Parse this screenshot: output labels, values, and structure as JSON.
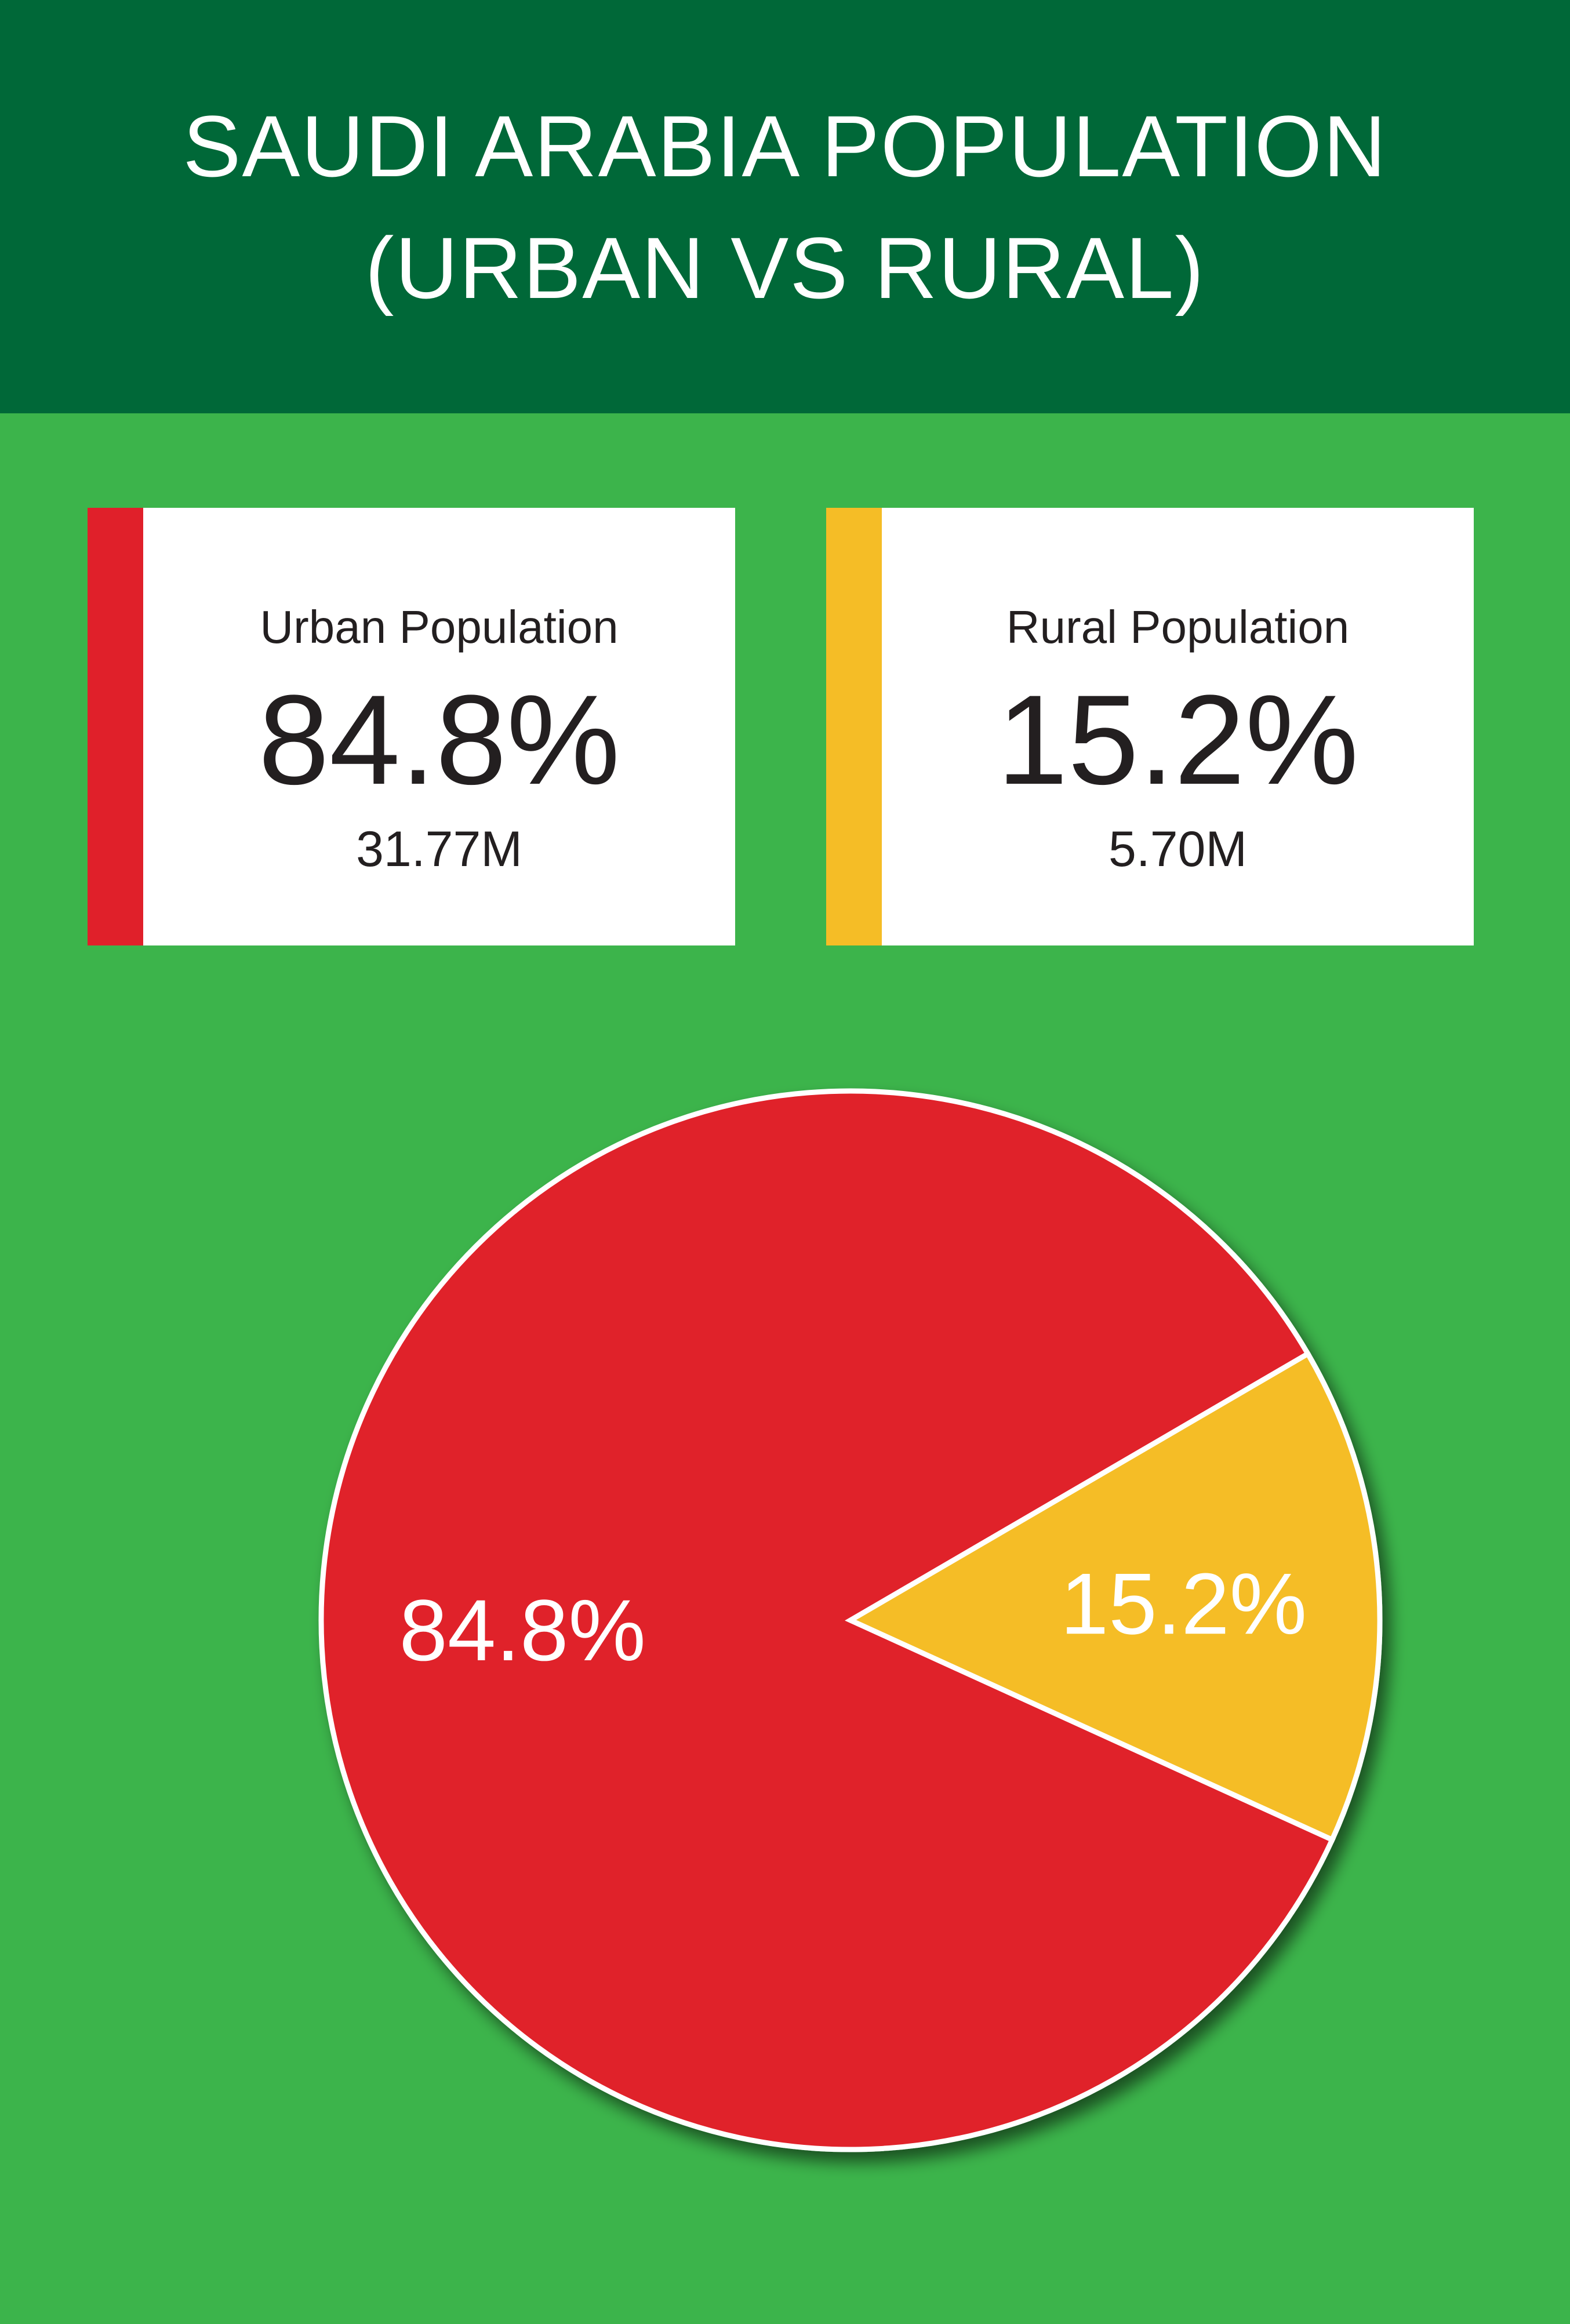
{
  "header": {
    "title_line1": "SAUDI ARABIA POPULATION",
    "title_line2": "(URBAN VS RURAL)"
  },
  "cards": {
    "urban": {
      "label": "Urban Population",
      "percent": "84.8%",
      "count": "31.77M",
      "accent_color": "#e0202a"
    },
    "rural": {
      "label": "Rural Population",
      "percent": "15.2%",
      "count": "5.70M",
      "accent_color": "#f5bd26"
    }
  },
  "chart_data": {
    "type": "pie",
    "categories": [
      "Urban Population",
      "Rural Population"
    ],
    "values": [
      84.8,
      15.2
    ],
    "labels": [
      "84.8%",
      "15.2%"
    ],
    "colors": [
      "#e0202a",
      "#f5bd26"
    ],
    "slice_border_color": "#ffffff",
    "title": "SAUDI ARABIA POPULATION (URBAN VS RURAL)"
  },
  "colors": {
    "background": "#3cb44b",
    "header_bg": "#006838",
    "card_bg": "#ffffff",
    "text_dark": "#231f20"
  }
}
